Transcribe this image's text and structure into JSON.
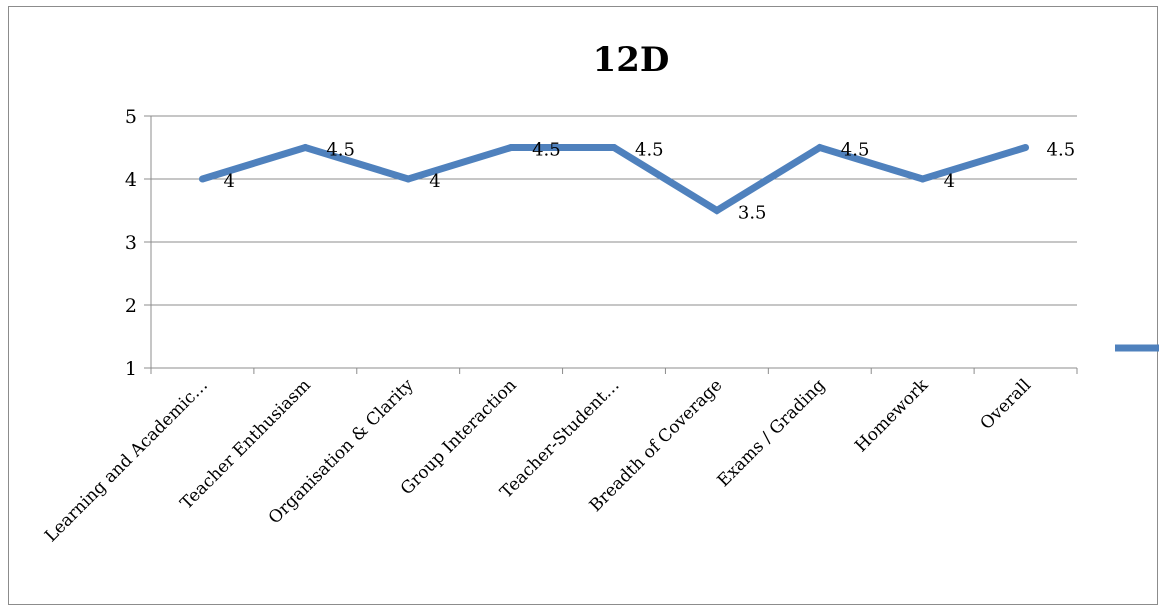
{
  "chart_data": {
    "type": "line",
    "title": "12D",
    "xlabel": "",
    "ylabel": "",
    "ylim": [
      1,
      5
    ],
    "yticks": [
      1,
      2,
      3,
      4,
      5
    ],
    "grid": true,
    "legend_position": "right",
    "categories": [
      "Learning and Academic…",
      "Teacher Enthusiasm",
      "Organisation & Clarity",
      "Group Interaction",
      "Teacher-Student…",
      "Breadth of Coverage",
      "Exams / Grading",
      "Homework",
      "Overall"
    ],
    "series": [
      {
        "values": [
          4,
          4.5,
          4,
          4.5,
          4.5,
          3.5,
          4.5,
          4,
          4.5
        ],
        "data_labels": [
          "4",
          "4.5",
          "4",
          "4.5",
          "4.5",
          "3.5",
          "4.5",
          "4",
          "4.5"
        ],
        "color": "#4F81BD"
      }
    ]
  }
}
